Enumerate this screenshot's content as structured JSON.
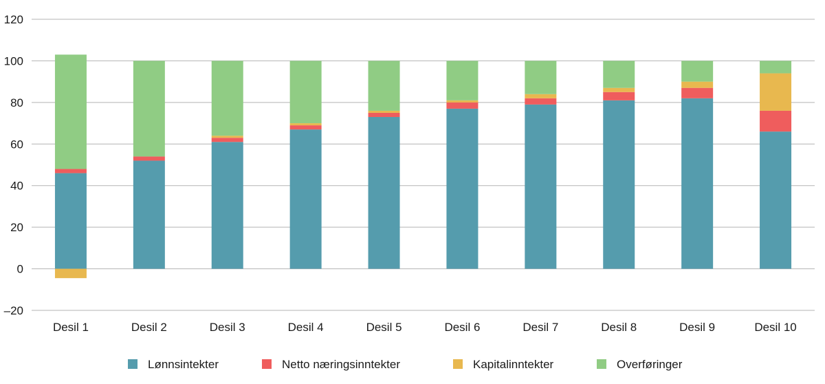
{
  "chart_data": {
    "type": "bar",
    "stacked": true,
    "categories": [
      "Desil 1",
      "Desil 2",
      "Desil 3",
      "Desil 4",
      "Desil 5",
      "Desil 6",
      "Desil 7",
      "Desil 8",
      "Desil 9",
      "Desil 10"
    ],
    "series": [
      {
        "name": "Lønnsintekter",
        "color": "#559cad",
        "values": [
          46,
          52,
          61,
          67,
          73,
          77,
          79,
          81,
          82,
          66
        ]
      },
      {
        "name": "Netto næringsinntekter",
        "color": "#ef5d5d",
        "values": [
          2,
          2,
          2,
          2,
          2,
          3,
          3,
          4,
          5,
          10
        ]
      },
      {
        "name": "Kapitalinntekter",
        "color": "#e8b84f",
        "values": [
          -4.5,
          0,
          1,
          1,
          1,
          1,
          2,
          2,
          3,
          18
        ]
      },
      {
        "name": "Overføringer",
        "color": "#90cc84",
        "values": [
          55,
          46,
          36,
          30,
          24,
          19,
          16,
          13,
          10,
          6
        ]
      }
    ],
    "yticks": [
      -20,
      0,
      20,
      40,
      60,
      80,
      100,
      120
    ],
    "ylim": [
      -20,
      120
    ],
    "grid": true,
    "legend_position": "bottom",
    "title": "",
    "xlabel": "",
    "ylabel": ""
  }
}
